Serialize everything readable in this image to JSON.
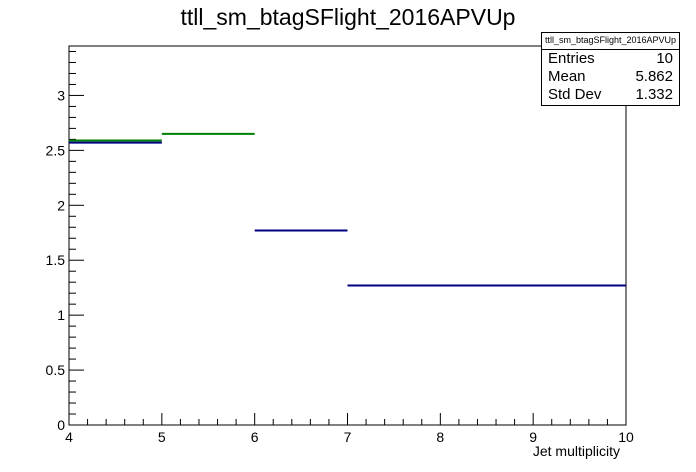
{
  "chart_data": {
    "type": "histogram",
    "title": "ttll_sm_btagSFlight_2016APVUp",
    "xlabel": "Jet multiplicity",
    "ylabel": "",
    "xlim": [
      4,
      10
    ],
    "ylim": [
      0,
      3.45
    ],
    "x_ticks": [
      "4",
      "5",
      "6",
      "7",
      "8",
      "9",
      "10"
    ],
    "y_ticks": [
      "0",
      "0.5",
      "1",
      "1.5",
      "2",
      "2.5",
      "3"
    ],
    "grid": false,
    "series": [
      {
        "color": "#000080",
        "bins": [
          {
            "x0": 4,
            "x1": 5,
            "y": 2.57
          },
          {
            "x0": 6,
            "x1": 7,
            "y": 1.77
          },
          {
            "x0": 7,
            "x1": 10,
            "y": 1.27
          }
        ]
      },
      {
        "color": "#008000",
        "bins": [
          {
            "x0": 4,
            "x1": 5,
            "y": 2.59
          },
          {
            "x0": 5,
            "x1": 6,
            "y": 2.65
          }
        ]
      }
    ],
    "stats_box": {
      "name": "ttll_sm_btagSFlight_2016APVUp",
      "entries_label": "Entries",
      "entries": "10",
      "mean_label": "Mean",
      "mean": "5.862",
      "std_label": "Std Dev",
      "std": "1.332"
    }
  }
}
